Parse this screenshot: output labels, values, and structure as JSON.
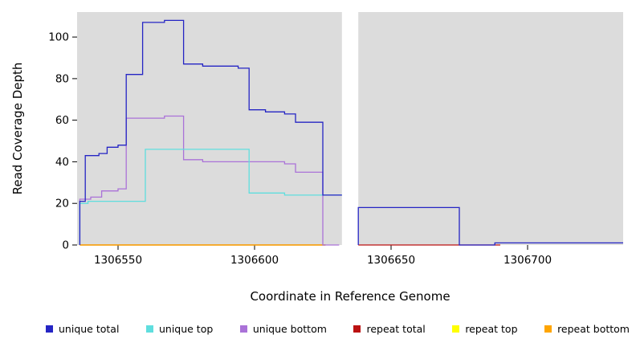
{
  "chart_data": {
    "type": "line",
    "subtype": "step",
    "title": "",
    "xlabel": "Coordinate in Reference Genome",
    "ylabel": "Read Coverage Depth",
    "xlim": [
      1306535,
      1306735
    ],
    "ylim": [
      0,
      112
    ],
    "xticks": [
      1306550,
      1306600,
      1306650,
      1306700
    ],
    "yticks": [
      0,
      20,
      40,
      60,
      80,
      100
    ],
    "plot_bg": "#dcdcdc",
    "axis_color": "#000000",
    "gap_band": {
      "from": 1306632,
      "to": 1306638,
      "color": "#ffffff"
    },
    "series": [
      {
        "name": "repeat top",
        "color": "#ffff00",
        "segments": [
          [
            [
              1306536,
              0
            ],
            [
              1306626,
              0
            ]
          ]
        ]
      },
      {
        "name": "repeat total",
        "color": "#bb1111",
        "segments": [
          [
            [
              1306536,
              0
            ],
            [
              1306626,
              0
            ]
          ],
          [
            [
              1306638,
              0
            ],
            [
              1306690,
              0
            ]
          ]
        ]
      },
      {
        "name": "repeat bottom",
        "color": "#ffa500",
        "segments": [
          [
            [
              1306536,
              0
            ],
            [
              1306626,
              0
            ]
          ]
        ]
      },
      {
        "name": "unique bottom",
        "color": "#aa72d8",
        "segments": [
          [
            [
              1306536,
              0
            ],
            [
              1306536,
              22
            ],
            [
              1306540,
              23
            ],
            [
              1306544,
              26
            ],
            [
              1306550,
              27
            ],
            [
              1306553,
              61
            ],
            [
              1306567,
              62
            ],
            [
              1306574,
              41
            ],
            [
              1306581,
              40
            ],
            [
              1306611,
              39
            ],
            [
              1306615,
              35
            ],
            [
              1306625,
              0
            ],
            [
              1306631,
              0
            ]
          ]
        ]
      },
      {
        "name": "unique top",
        "color": "#5fdede",
        "segments": [
          [
            [
              1306536,
              0
            ],
            [
              1306536,
              20
            ],
            [
              1306539,
              21
            ],
            [
              1306560,
              46
            ],
            [
              1306598,
              25
            ],
            [
              1306611,
              24
            ],
            [
              1306632,
              24
            ]
          ]
        ]
      },
      {
        "name": "unique total",
        "color": "#2525c4",
        "segments": [
          [
            [
              1306536,
              0
            ],
            [
              1306536,
              21
            ],
            [
              1306538,
              43
            ],
            [
              1306543,
              44
            ],
            [
              1306546,
              47
            ],
            [
              1306550,
              48
            ],
            [
              1306553,
              82
            ],
            [
              1306559,
              107
            ],
            [
              1306567,
              108
            ],
            [
              1306574,
              87
            ],
            [
              1306581,
              86
            ],
            [
              1306594,
              85
            ],
            [
              1306598,
              65
            ],
            [
              1306604,
              64
            ],
            [
              1306611,
              63
            ],
            [
              1306615,
              59
            ],
            [
              1306625,
              24
            ],
            [
              1306632,
              24
            ]
          ],
          [
            [
              1306638,
              0
            ],
            [
              1306638,
              18
            ],
            [
              1306675,
              0
            ],
            [
              1306688,
              1
            ],
            [
              1306735,
              1
            ]
          ]
        ]
      }
    ],
    "legend": [
      {
        "label": "unique total",
        "color": "#2525c4"
      },
      {
        "label": "unique top",
        "color": "#5fdede"
      },
      {
        "label": "unique bottom",
        "color": "#aa72d8"
      },
      {
        "label": "repeat total",
        "color": "#bb1111"
      },
      {
        "label": "repeat top",
        "color": "#ffff00"
      },
      {
        "label": "repeat bottom",
        "color": "#ffa500"
      }
    ]
  }
}
